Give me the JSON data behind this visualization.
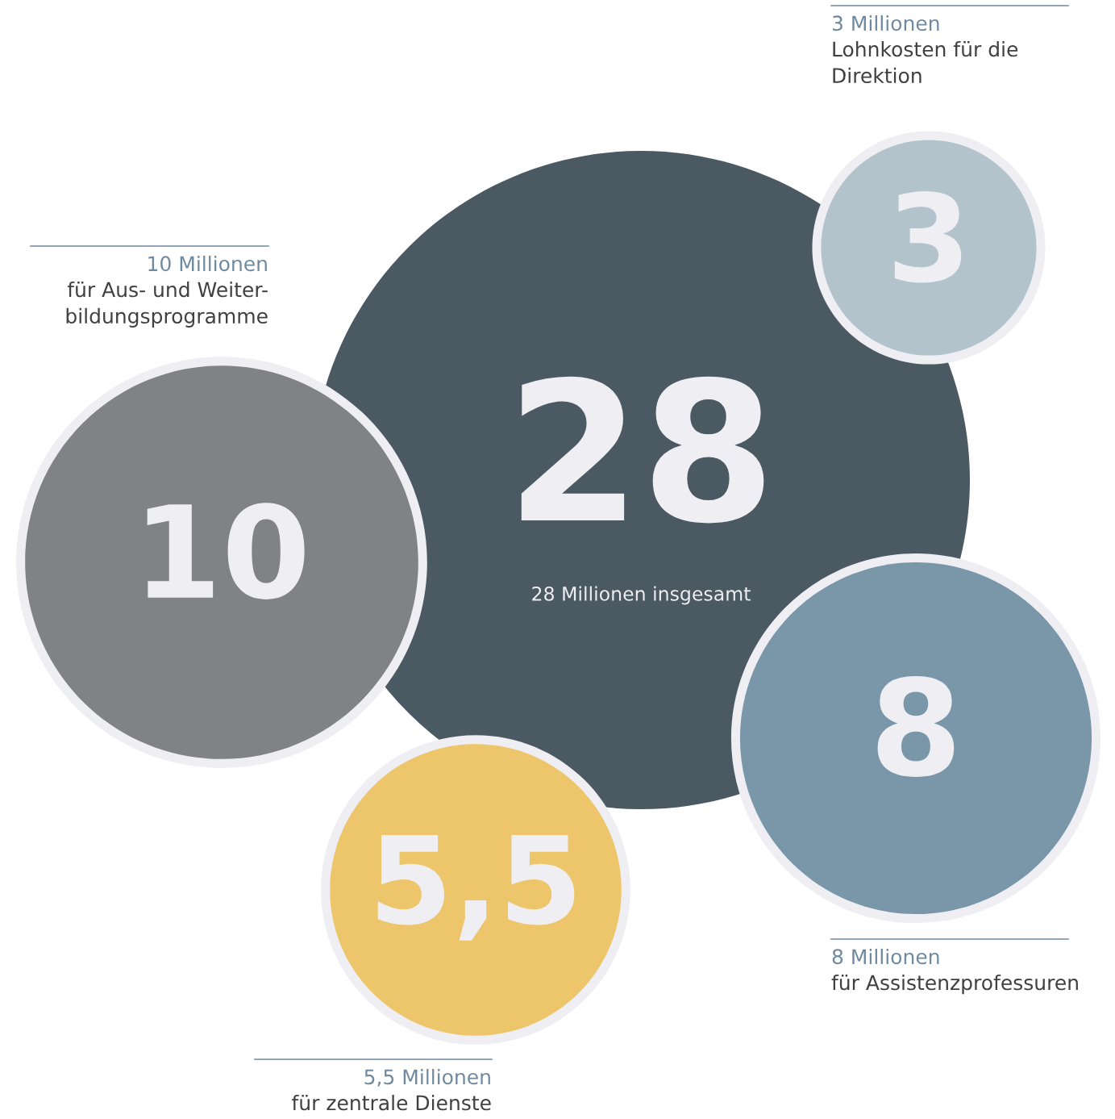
{
  "chart_data": {
    "type": "other",
    "categories": [
      "28 Millionen insgesamt",
      "Lohnkosten für die\nDirektion",
      "für Aus- und Weiter-\nbildungsprogramme",
      "für Assistenzprofessuren",
      "für zentrale Dienste"
    ],
    "values": [
      28,
      3,
      10,
      8,
      5.5
    ],
    "value_labels": [
      "28",
      "3",
      "10",
      "8",
      "5,5"
    ],
    "colors": [
      "#4b5963",
      "#b3c3cc",
      "#818286",
      "#7a97aa",
      "#edc56a"
    ],
    "annotations": [
      "3 Millionen",
      "10 Millionen",
      "8 Millionen",
      "5,5 Millionen"
    ]
  }
}
